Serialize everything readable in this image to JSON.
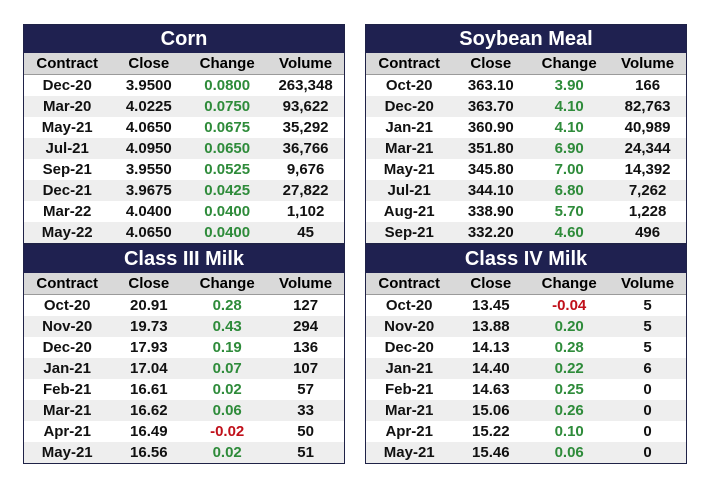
{
  "tables": [
    {
      "id": "corn",
      "title": "Corn",
      "headers": [
        "Contract",
        "Close",
        "Change",
        "Volume"
      ],
      "rows": [
        [
          "Dec-20",
          "3.9500",
          "0.0800",
          "263,348"
        ],
        [
          "Mar-20",
          "4.0225",
          "0.0750",
          "93,622"
        ],
        [
          "May-21",
          "4.0650",
          "0.0675",
          "35,292"
        ],
        [
          "Jul-21",
          "4.0950",
          "0.0650",
          "36,766"
        ],
        [
          "Sep-21",
          "3.9550",
          "0.0525",
          "9,676"
        ],
        [
          "Dec-21",
          "3.9675",
          "0.0425",
          "27,822"
        ],
        [
          "Mar-22",
          "4.0400",
          "0.0400",
          "1,102"
        ],
        [
          "May-22",
          "4.0650",
          "0.0400",
          "45"
        ]
      ]
    },
    {
      "id": "soy",
      "title": "Soybean Meal",
      "headers": [
        "Contract",
        "Close",
        "Change",
        "Volume"
      ],
      "rows": [
        [
          "Oct-20",
          "363.10",
          "3.90",
          "166"
        ],
        [
          "Dec-20",
          "363.70",
          "4.10",
          "82,763"
        ],
        [
          "Jan-21",
          "360.90",
          "4.10",
          "40,989"
        ],
        [
          "Mar-21",
          "351.80",
          "6.90",
          "24,344"
        ],
        [
          "May-21",
          "345.80",
          "7.00",
          "14,392"
        ],
        [
          "Jul-21",
          "344.10",
          "6.80",
          "7,262"
        ],
        [
          "Aug-21",
          "338.90",
          "5.70",
          "1,228"
        ],
        [
          "Sep-21",
          "332.20",
          "4.60",
          "496"
        ]
      ]
    },
    {
      "id": "milk3",
      "title": "Class III Milk",
      "headers": [
        "Contract",
        "Close",
        "Change",
        "Volume"
      ],
      "rows": [
        [
          "Oct-20",
          "20.91",
          "0.28",
          "127"
        ],
        [
          "Nov-20",
          "19.73",
          "0.43",
          "294"
        ],
        [
          "Dec-20",
          "17.93",
          "0.19",
          "136"
        ],
        [
          "Jan-21",
          "17.04",
          "0.07",
          "107"
        ],
        [
          "Feb-21",
          "16.61",
          "0.02",
          "57"
        ],
        [
          "Mar-21",
          "16.62",
          "0.06",
          "33"
        ],
        [
          "Apr-21",
          "16.49",
          "-0.02",
          "50"
        ],
        [
          "May-21",
          "16.56",
          "0.02",
          "51"
        ]
      ]
    },
    {
      "id": "milk4",
      "title": "Class IV Milk",
      "headers": [
        "Contract",
        "Close",
        "Change",
        "Volume"
      ],
      "rows": [
        [
          "Oct-20",
          "13.45",
          "-0.04",
          "5"
        ],
        [
          "Nov-20",
          "13.88",
          "0.20",
          "5"
        ],
        [
          "Dec-20",
          "14.13",
          "0.28",
          "5"
        ],
        [
          "Jan-21",
          "14.40",
          "0.22",
          "6"
        ],
        [
          "Feb-21",
          "14.63",
          "0.25",
          "0"
        ],
        [
          "Mar-21",
          "15.06",
          "0.26",
          "0"
        ],
        [
          "Apr-21",
          "15.22",
          "0.10",
          "0"
        ],
        [
          "May-21",
          "15.46",
          "0.06",
          "0"
        ]
      ]
    }
  ],
  "colors": {
    "title_bg": "#1f2150",
    "positive": "#2e8b3a",
    "negative": "#c0101a",
    "header_bg": "#d9d9d9",
    "alt_row": "#eeeeee"
  }
}
